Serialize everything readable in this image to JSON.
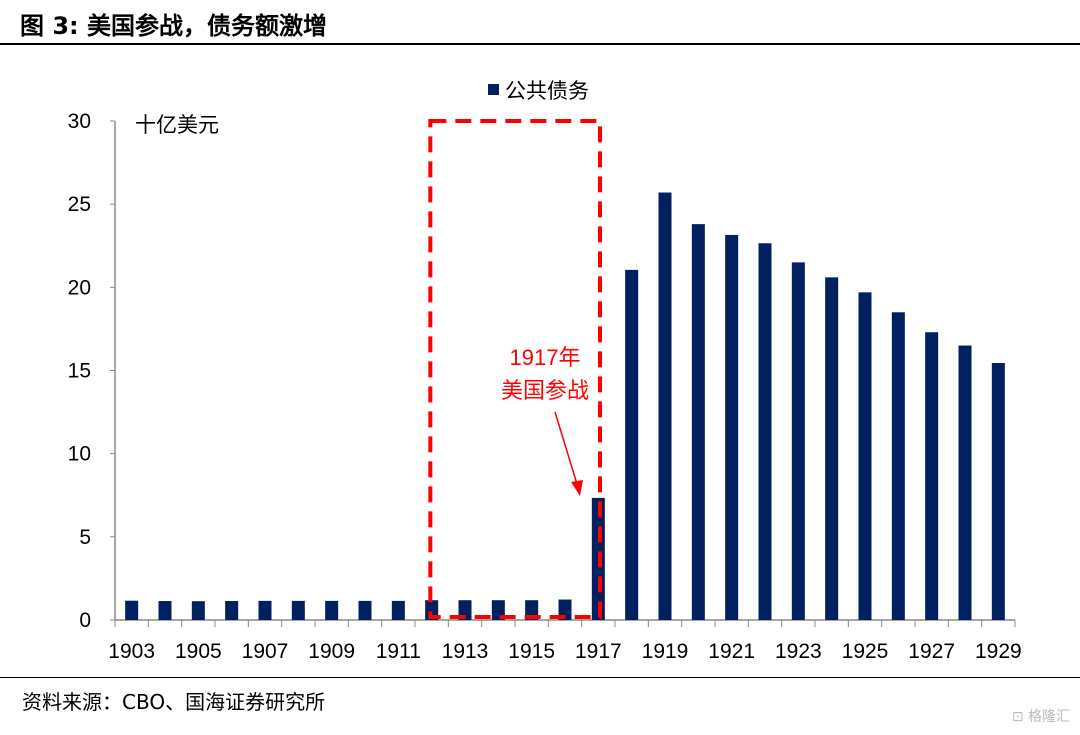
{
  "header": {
    "title": "图 3:  美国参战，债务额激增"
  },
  "footer": {
    "source": "资料来源：CBO、国海证券研究所",
    "watermark": "格隆汇"
  },
  "chart_data": {
    "type": "bar",
    "title": "",
    "legend": {
      "entries": [
        "公共债务"
      ],
      "placement": "top-center"
    },
    "ylabel": "十亿美元",
    "xlabel": "",
    "ylim": [
      0,
      30
    ],
    "yticks": [
      0,
      5,
      10,
      15,
      20,
      25,
      30
    ],
    "categories": [
      "1903",
      "1904",
      "1905",
      "1906",
      "1907",
      "1908",
      "1909",
      "1910",
      "1911",
      "1912",
      "1913",
      "1914",
      "1915",
      "1916",
      "1917",
      "1918",
      "1919",
      "1920",
      "1921",
      "1922",
      "1923",
      "1924",
      "1925",
      "1926",
      "1927",
      "1928",
      "1929"
    ],
    "xticklabels": [
      "1903",
      "1905",
      "1907",
      "1909",
      "1911",
      "1913",
      "1915",
      "1917",
      "1919",
      "1921",
      "1923",
      "1925",
      "1927",
      "1929"
    ],
    "series": [
      {
        "name": "公共债务",
        "color": "#002060",
        "values": [
          1.16,
          1.14,
          1.13,
          1.14,
          1.15,
          1.15,
          1.15,
          1.15,
          1.15,
          1.19,
          1.19,
          1.19,
          1.19,
          1.23,
          7.34,
          21.05,
          25.7,
          23.8,
          23.15,
          22.65,
          21.5,
          20.6,
          19.7,
          18.5,
          17.3,
          16.5,
          15.45
        ]
      }
    ],
    "annotation": {
      "lines": [
        "1917年",
        "美国参战"
      ],
      "color": "#ff0000",
      "highlight_range": [
        "1913",
        "1917"
      ]
    }
  }
}
